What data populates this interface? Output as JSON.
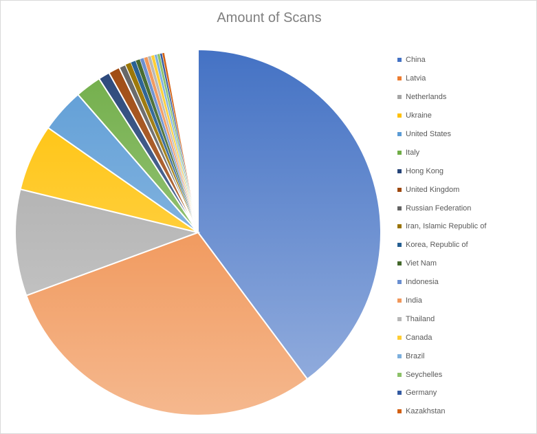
{
  "chart_data": {
    "type": "pie",
    "title": "Amount of Scans",
    "legend_position": "right",
    "slices": [
      {
        "label": "China",
        "value": 39.8,
        "color": "#4472c4"
      },
      {
        "label": "Latvia",
        "value": 29.6,
        "color": "#ed7d31"
      },
      {
        "label": "Netherlands",
        "value": 9.4,
        "color": "#a5a5a5"
      },
      {
        "label": "Ukraine",
        "value": 5.9,
        "color": "#ffc000"
      },
      {
        "label": "United States",
        "value": 3.9,
        "color": "#5b9bd5"
      },
      {
        "label": "Italy",
        "value": 2.3,
        "color": "#70ad47"
      },
      {
        "label": "Hong Kong",
        "value": 1.0,
        "color": "#264478"
      },
      {
        "label": "United Kingdom",
        "value": 1.0,
        "color": "#9e480e"
      },
      {
        "label": "Russian Federation",
        "value": 0.6,
        "color": "#636363"
      },
      {
        "label": "Iran, Islamic Republic of",
        "value": 0.5,
        "color": "#997300"
      },
      {
        "label": "Korea, Republic of",
        "value": 0.45,
        "color": "#255e91"
      },
      {
        "label": "Viet Nam",
        "value": 0.4,
        "color": "#43682b"
      },
      {
        "label": "Indonesia",
        "value": 0.35,
        "color": "#698ed0"
      },
      {
        "label": "India",
        "value": 0.35,
        "color": "#f1975a"
      },
      {
        "label": "Thailand",
        "value": 0.3,
        "color": "#b7b7b7"
      },
      {
        "label": "Canada",
        "value": 0.3,
        "color": "#ffcd33"
      },
      {
        "label": "Brazil",
        "value": 0.25,
        "color": "#7cafdd"
      },
      {
        "label": "Seychelles",
        "value": 0.25,
        "color": "#8cc168"
      },
      {
        "label": "Germany",
        "value": 0.2,
        "color": "#335aa1"
      },
      {
        "label": "Kazakhstan",
        "value": 0.2,
        "color": "#d26012"
      }
    ]
  }
}
